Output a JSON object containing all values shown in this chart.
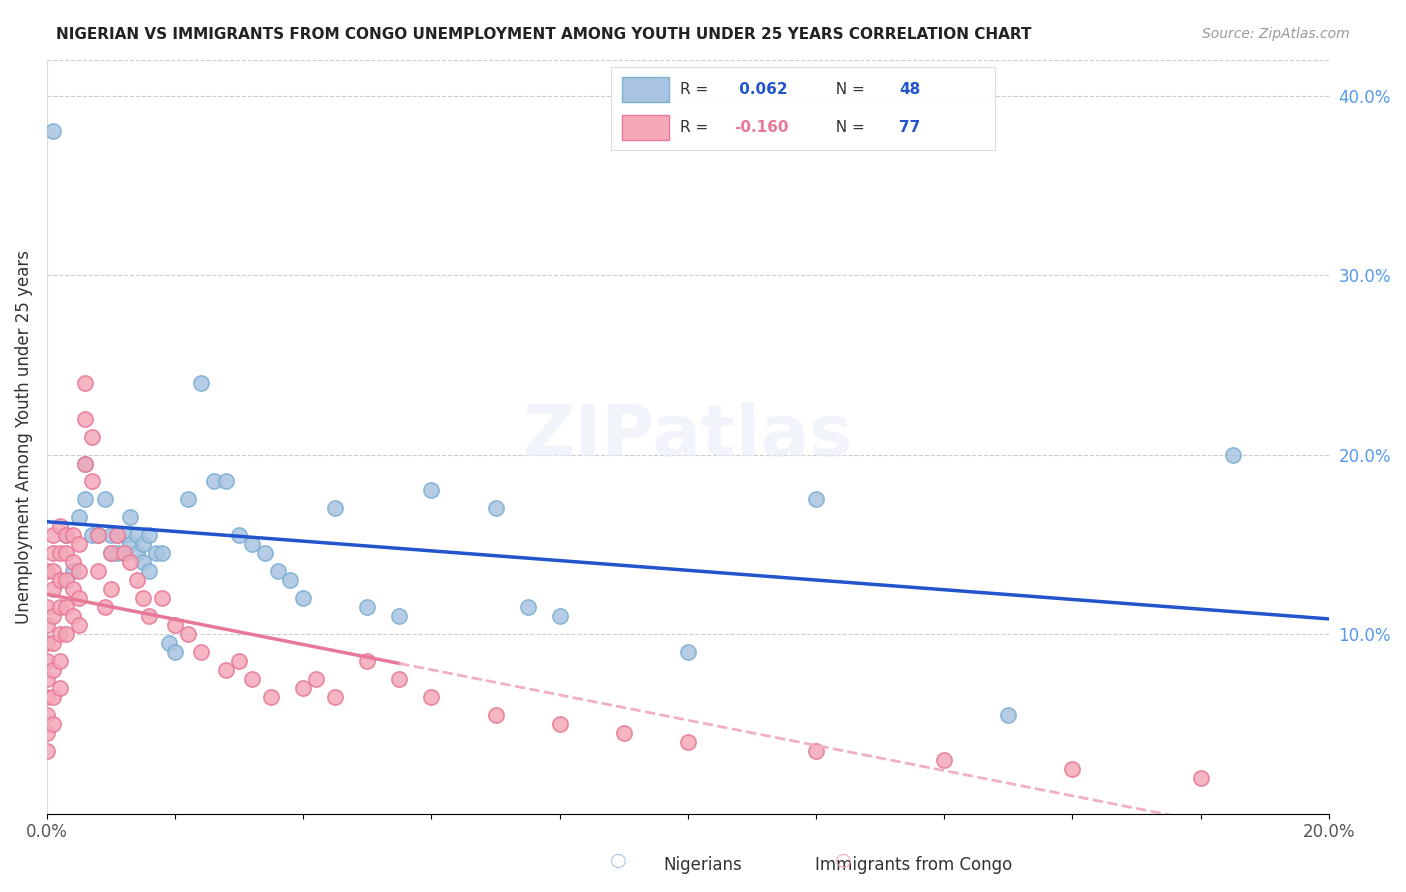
{
  "title": "NIGERIAN VS IMMIGRANTS FROM CONGO UNEMPLOYMENT AMONG YOUTH UNDER 25 YEARS CORRELATION CHART",
  "source": "Source: ZipAtlas.com",
  "xlabel_bottom": "",
  "ylabel": "Unemployment Among Youth under 25 years",
  "xlim": [
    0,
    0.2
  ],
  "ylim": [
    0,
    0.42
  ],
  "xticks": [
    0.0,
    0.02,
    0.04,
    0.06,
    0.08,
    0.1,
    0.12,
    0.14,
    0.16,
    0.18,
    0.2
  ],
  "xticklabels": [
    "0.0%",
    "",
    "",
    "",
    "",
    "",
    "",
    "",
    "",
    "",
    "20.0%"
  ],
  "yticks_left": [],
  "yticks_right": [
    0.0,
    0.1,
    0.2,
    0.3,
    0.4
  ],
  "yticklabels_right": [
    "",
    "10.0%",
    "20.0%",
    "30.0%",
    "40.0%"
  ],
  "legend1_label": "R =  0.062   N = 48",
  "legend2_label": "R = -0.160   N = 77",
  "legend_bottom1": "Nigerians",
  "legend_bottom2": "Immigrants from Congo",
  "nigerian_color": "#a8c4e0",
  "nigerian_edge_color": "#7bafd4",
  "congo_color": "#f4a8b8",
  "congo_edge_color": "#e87898",
  "trend_blue": "#2255cc",
  "trend_pink": "#e87898",
  "trend_pink_dashed": "#f0b0c0",
  "R_nigerian": 0.062,
  "R_congo": -0.16,
  "N_nigerian": 48,
  "N_congo": 77,
  "nigerian_x": [
    0.001,
    0.003,
    0.004,
    0.005,
    0.006,
    0.006,
    0.007,
    0.008,
    0.009,
    0.01,
    0.01,
    0.011,
    0.011,
    0.012,
    0.012,
    0.013,
    0.013,
    0.014,
    0.014,
    0.015,
    0.015,
    0.016,
    0.016,
    0.017,
    0.018,
    0.019,
    0.02,
    0.022,
    0.024,
    0.026,
    0.028,
    0.03,
    0.032,
    0.034,
    0.036,
    0.038,
    0.04,
    0.045,
    0.05,
    0.055,
    0.06,
    0.07,
    0.075,
    0.08,
    0.1,
    0.12,
    0.15,
    0.185
  ],
  "nigerian_y": [
    0.38,
    0.155,
    0.135,
    0.165,
    0.195,
    0.175,
    0.155,
    0.155,
    0.175,
    0.155,
    0.145,
    0.155,
    0.145,
    0.155,
    0.145,
    0.165,
    0.15,
    0.145,
    0.155,
    0.14,
    0.15,
    0.155,
    0.135,
    0.145,
    0.145,
    0.095,
    0.09,
    0.175,
    0.24,
    0.185,
    0.185,
    0.155,
    0.15,
    0.145,
    0.135,
    0.13,
    0.12,
    0.17,
    0.115,
    0.11,
    0.18,
    0.17,
    0.115,
    0.11,
    0.09,
    0.175,
    0.055,
    0.2
  ],
  "congo_x": [
    0.0,
    0.0,
    0.0,
    0.0,
    0.0,
    0.0,
    0.0,
    0.0,
    0.0,
    0.0,
    0.001,
    0.001,
    0.001,
    0.001,
    0.001,
    0.001,
    0.001,
    0.001,
    0.001,
    0.002,
    0.002,
    0.002,
    0.002,
    0.002,
    0.002,
    0.002,
    0.003,
    0.003,
    0.003,
    0.003,
    0.003,
    0.004,
    0.004,
    0.004,
    0.004,
    0.005,
    0.005,
    0.005,
    0.005,
    0.006,
    0.006,
    0.006,
    0.007,
    0.007,
    0.008,
    0.008,
    0.009,
    0.01,
    0.01,
    0.011,
    0.012,
    0.013,
    0.014,
    0.015,
    0.016,
    0.018,
    0.02,
    0.022,
    0.024,
    0.028,
    0.03,
    0.032,
    0.035,
    0.04,
    0.042,
    0.045,
    0.05,
    0.055,
    0.06,
    0.07,
    0.08,
    0.09,
    0.1,
    0.12,
    0.14,
    0.16,
    0.18
  ],
  "congo_y": [
    0.135,
    0.115,
    0.105,
    0.095,
    0.085,
    0.075,
    0.065,
    0.055,
    0.045,
    0.035,
    0.155,
    0.145,
    0.135,
    0.125,
    0.11,
    0.095,
    0.08,
    0.065,
    0.05,
    0.16,
    0.145,
    0.13,
    0.115,
    0.1,
    0.085,
    0.07,
    0.155,
    0.145,
    0.13,
    0.115,
    0.1,
    0.155,
    0.14,
    0.125,
    0.11,
    0.15,
    0.135,
    0.12,
    0.105,
    0.24,
    0.22,
    0.195,
    0.21,
    0.185,
    0.155,
    0.135,
    0.115,
    0.145,
    0.125,
    0.155,
    0.145,
    0.14,
    0.13,
    0.12,
    0.11,
    0.12,
    0.105,
    0.1,
    0.09,
    0.08,
    0.085,
    0.075,
    0.065,
    0.07,
    0.075,
    0.065,
    0.085,
    0.075,
    0.065,
    0.055,
    0.05,
    0.045,
    0.04,
    0.035,
    0.03,
    0.025,
    0.02
  ]
}
